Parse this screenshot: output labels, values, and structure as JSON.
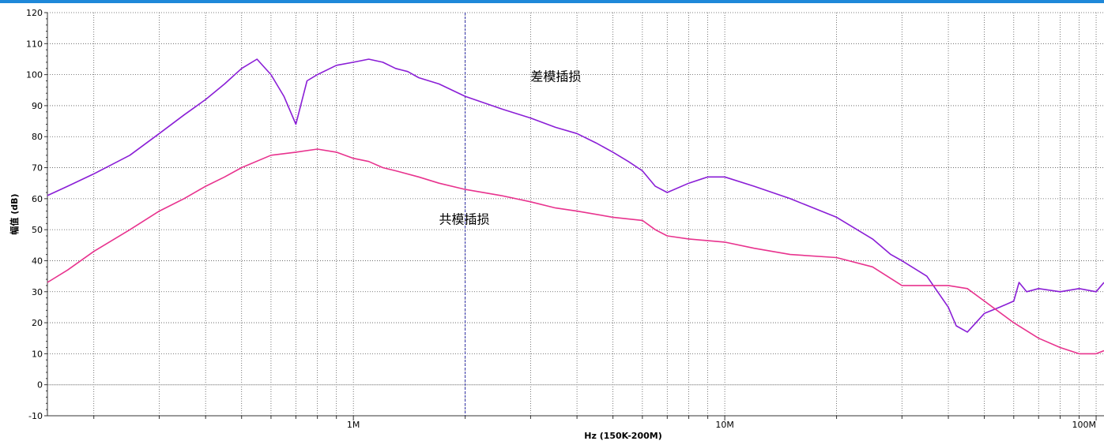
{
  "chart_data": {
    "type": "line",
    "title": "",
    "xlabel": "Hz  (150K-200M)",
    "ylabel": "幅值 (dB)",
    "x_scale": "log",
    "xlim": [
      150000,
      105000000
    ],
    "ylim": [
      -10,
      120
    ],
    "y_ticks": [
      -10,
      0,
      10,
      20,
      30,
      40,
      50,
      60,
      70,
      80,
      90,
      100,
      110,
      120
    ],
    "y_tick_labels": [
      "-10",
      "0",
      "10",
      "20",
      "30",
      "40",
      "50",
      "60",
      "70",
      "80",
      "90",
      "100",
      "110",
      "120"
    ],
    "x_tick_labels": [
      {
        "x": 1000000,
        "label": "1M"
      },
      {
        "x": 10000000,
        "label": "10M"
      },
      {
        "x": 100000000,
        "label": "100M"
      }
    ],
    "grid": true,
    "marker_line_x": 2000000,
    "annotations": [
      {
        "text": "差模插损",
        "x": 3000000,
        "y": 98
      },
      {
        "text": "共模插损",
        "x": 1700000,
        "y": 52
      }
    ],
    "series": [
      {
        "name": "差模插损",
        "color": "#8a1ed6",
        "x": [
          150000,
          170000,
          200000,
          250000,
          300000,
          350000,
          400000,
          450000,
          500000,
          550000,
          600000,
          650000,
          700000,
          750000,
          800000,
          900000,
          1000000,
          1100000,
          1200000,
          1300000,
          1400000,
          1500000,
          1700000,
          2000000,
          2500000,
          3000000,
          3500000,
          4000000,
          4500000,
          5000000,
          5500000,
          6000000,
          6500000,
          7000000,
          8000000,
          9000000,
          10000000,
          12000000,
          15000000,
          20000000,
          25000000,
          28000000,
          30000000,
          35000000,
          40000000,
          42000000,
          45000000,
          50000000,
          55000000,
          60000000,
          62000000,
          65000000,
          70000000,
          80000000,
          90000000,
          100000000,
          105000000
        ],
        "y": [
          61,
          64,
          68,
          74,
          81,
          87,
          92,
          97,
          102,
          105,
          100,
          93,
          84,
          98,
          100,
          103,
          104,
          105,
          104,
          102,
          101,
          99,
          97,
          93,
          89,
          86,
          83,
          81,
          78,
          75,
          72,
          69,
          64,
          62,
          65,
          67,
          67,
          64,
          60,
          54,
          47,
          42,
          40,
          35,
          25,
          19,
          17,
          23,
          25,
          27,
          33,
          30,
          31,
          30,
          31,
          30,
          33
        ]
      },
      {
        "name": "共模插损",
        "color": "#e8338e",
        "x": [
          150000,
          170000,
          200000,
          250000,
          300000,
          350000,
          400000,
          450000,
          500000,
          600000,
          700000,
          800000,
          900000,
          1000000,
          1100000,
          1200000,
          1300000,
          1500000,
          1700000,
          2000000,
          2500000,
          3000000,
          3500000,
          4000000,
          5000000,
          6000000,
          6500000,
          7000000,
          8000000,
          10000000,
          12000000,
          15000000,
          20000000,
          25000000,
          30000000,
          35000000,
          40000000,
          45000000,
          50000000,
          60000000,
          70000000,
          80000000,
          90000000,
          100000000,
          105000000
        ],
        "y": [
          33,
          37,
          43,
          50,
          56,
          60,
          64,
          67,
          70,
          74,
          75,
          76,
          75,
          73,
          72,
          70,
          69,
          67,
          65,
          63,
          61,
          59,
          57,
          56,
          54,
          53,
          50,
          48,
          47,
          46,
          44,
          42,
          41,
          38,
          32,
          32,
          32,
          31,
          27,
          20,
          15,
          12,
          10,
          10,
          11
        ]
      }
    ]
  }
}
